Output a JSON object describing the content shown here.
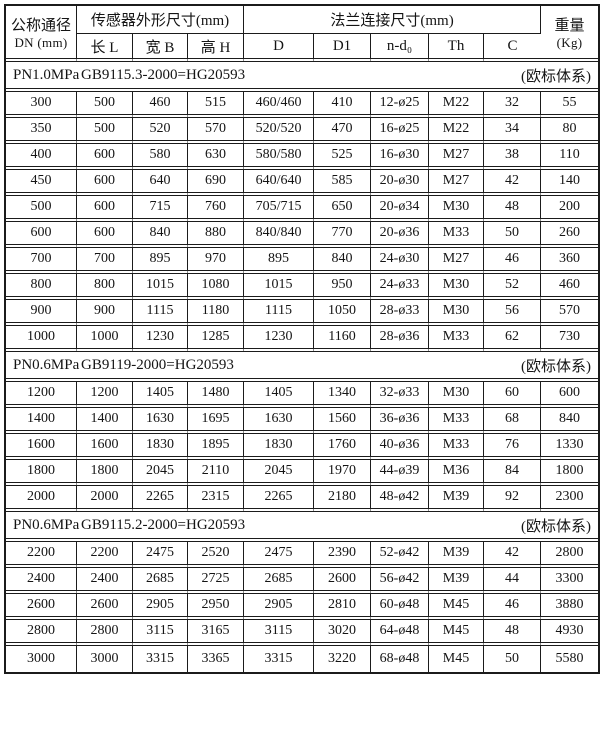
{
  "table": {
    "header": {
      "dn_title": "公称通径",
      "dn_sub": "DN (mm)",
      "sensor_group": "传感器外形尺寸(mm)",
      "flange_group": "法兰连接尺寸(mm)",
      "weight_title": "重量",
      "weight_sub": "(Kg)",
      "sensor_cols": [
        "长 L",
        "宽 B",
        "高 H"
      ],
      "flange_cols": [
        "D",
        "D1",
        "n-d₀",
        "Th",
        "C"
      ]
    },
    "sections": [
      {
        "pressure": "PN1.0MPa",
        "standard": "GB9115.3-2000=HG20593",
        "note": "(欧标体系)",
        "rows": [
          [
            "300",
            "500",
            "460",
            "515",
            "460/460",
            "410",
            "12-ø25",
            "M22",
            "32",
            "55"
          ],
          [
            "350",
            "500",
            "520",
            "570",
            "520/520",
            "470",
            "16-ø25",
            "M22",
            "34",
            "80"
          ],
          [
            "400",
            "600",
            "580",
            "630",
            "580/580",
            "525",
            "16-ø30",
            "M27",
            "38",
            "110"
          ],
          [
            "450",
            "600",
            "640",
            "690",
            "640/640",
            "585",
            "20-ø30",
            "M27",
            "42",
            "140"
          ],
          [
            "500",
            "600",
            "715",
            "760",
            "705/715",
            "650",
            "20-ø34",
            "M30",
            "48",
            "200"
          ],
          [
            "600",
            "600",
            "840",
            "880",
            "840/840",
            "770",
            "20-ø36",
            "M33",
            "50",
            "260"
          ],
          [
            "700",
            "700",
            "895",
            "970",
            "895",
            "840",
            "24-ø30",
            "M27",
            "46",
            "360"
          ],
          [
            "800",
            "800",
            "1015",
            "1080",
            "1015",
            "950",
            "24-ø33",
            "M30",
            "52",
            "460"
          ],
          [
            "900",
            "900",
            "1115",
            "1180",
            "1115",
            "1050",
            "28-ø33",
            "M30",
            "56",
            "570"
          ],
          [
            "1000",
            "1000",
            "1230",
            "1285",
            "1230",
            "1160",
            "28-ø36",
            "M33",
            "62",
            "730"
          ]
        ]
      },
      {
        "pressure": "PN0.6MPa",
        "standard": "GB9119-2000=HG20593",
        "note": "(欧标体系)",
        "rows": [
          [
            "1200",
            "1200",
            "1405",
            "1480",
            "1405",
            "1340",
            "32-ø33",
            "M30",
            "60",
            "600"
          ],
          [
            "1400",
            "1400",
            "1630",
            "1695",
            "1630",
            "1560",
            "36-ø36",
            "M33",
            "68",
            "840"
          ],
          [
            "1600",
            "1600",
            "1830",
            "1895",
            "1830",
            "1760",
            "40-ø36",
            "M33",
            "76",
            "1330"
          ],
          [
            "1800",
            "1800",
            "2045",
            "2110",
            "2045",
            "1970",
            "44-ø39",
            "M36",
            "84",
            "1800"
          ],
          [
            "2000",
            "2000",
            "2265",
            "2315",
            "2265",
            "2180",
            "48-ø42",
            "M39",
            "92",
            "2300"
          ]
        ]
      },
      {
        "pressure": "PN0.6MPa",
        "standard": "GB9115.2-2000=HG20593",
        "note": "(欧标体系)",
        "rows": [
          [
            "2200",
            "2200",
            "2475",
            "2520",
            "2475",
            "2390",
            "52-ø42",
            "M39",
            "42",
            "2800"
          ],
          [
            "2400",
            "2400",
            "2685",
            "2725",
            "2685",
            "2600",
            "56-ø42",
            "M39",
            "44",
            "3300"
          ],
          [
            "2600",
            "2600",
            "2905",
            "2950",
            "2905",
            "2810",
            "60-ø48",
            "M45",
            "46",
            "3880"
          ],
          [
            "2800",
            "2800",
            "3115",
            "3165",
            "3115",
            "3020",
            "64-ø48",
            "M45",
            "48",
            "4930"
          ],
          [
            "3000",
            "3000",
            "3315",
            "3365",
            "3315",
            "3220",
            "68-ø48",
            "M45",
            "50",
            "5580"
          ]
        ]
      }
    ]
  }
}
